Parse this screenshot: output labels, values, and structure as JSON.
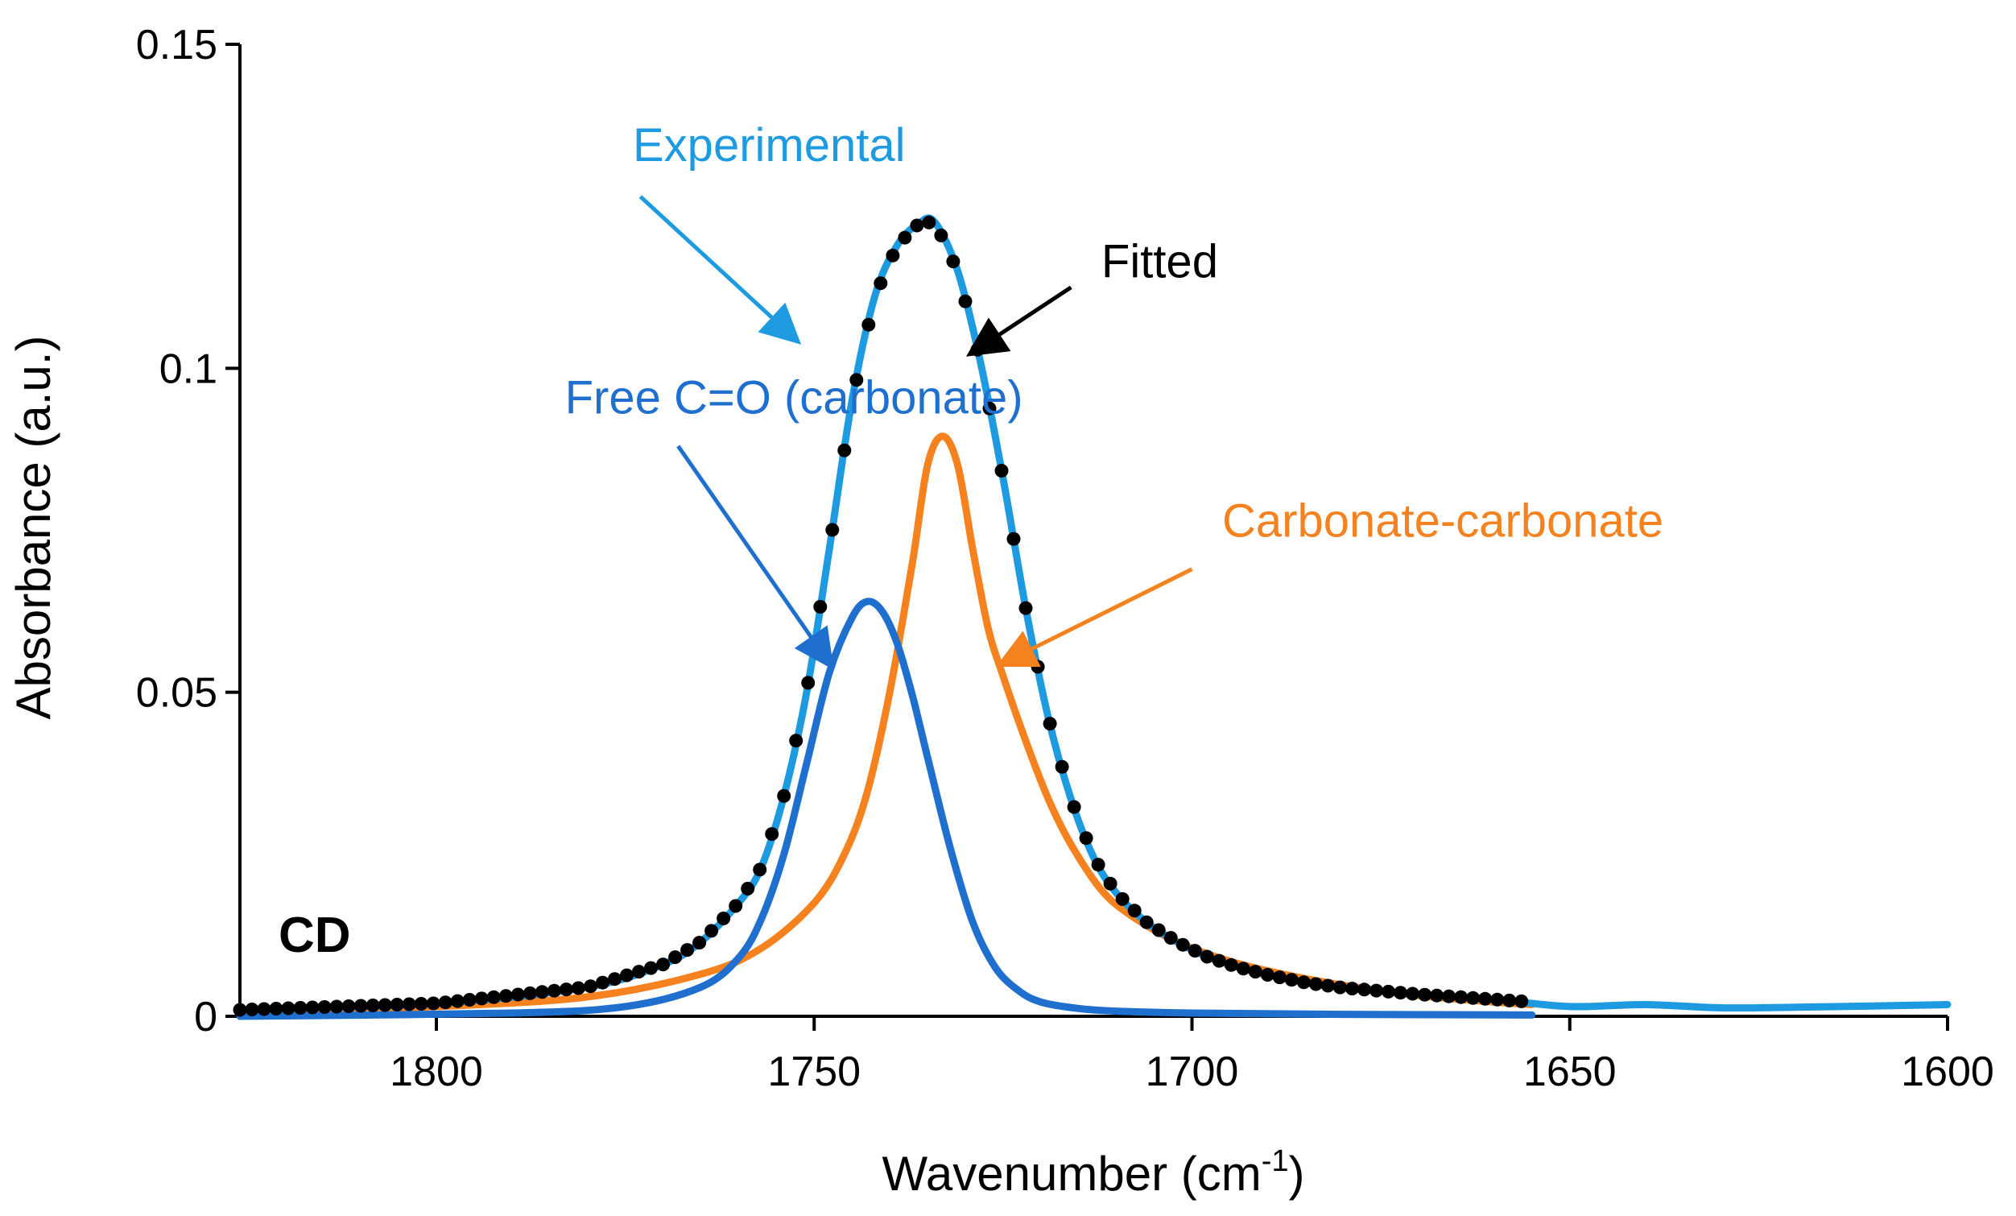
{
  "chart_data": {
    "type": "line",
    "title": "",
    "panel_label": "CD",
    "xlabel": "Wavenumber  (cm",
    "xlabel_sup": "-1",
    "xlabel_close": ")",
    "ylabel": "Absorbance  (a.u.)",
    "xlim": [
      1826,
      1600
    ],
    "ylim": [
      0,
      0.15
    ],
    "x_reversed": true,
    "x_ticks": [
      1800,
      1750,
      1700,
      1650,
      1600
    ],
    "x_tick_labels": [
      "1800",
      "1750",
      "1700",
      "1650",
      "1600"
    ],
    "y_ticks": [
      0,
      0.05,
      0.1,
      0.15
    ],
    "y_tick_labels": [
      "0",
      "0.05",
      "0.1",
      "0.15"
    ],
    "colors": {
      "experimental": "#1e9be0",
      "fitted": "#000000",
      "free": "#1f6fcf",
      "carbcarb": "#f5821f"
    },
    "series": [
      {
        "name": "Experimental",
        "style": "line",
        "color": "#1e9be0",
        "x": [
          1826,
          1800,
          1780,
          1770,
          1765,
          1760,
          1757,
          1754,
          1751,
          1748,
          1745,
          1742,
          1739,
          1736,
          1734,
          1731,
          1728,
          1725,
          1722,
          1719,
          1716,
          1713,
          1710,
          1706,
          1702,
          1698,
          1694,
          1690,
          1685,
          1680,
          1670,
          1660,
          1650,
          1640,
          1630,
          1620,
          1600
        ],
        "values": [
          0.001,
          0.002,
          0.0045,
          0.008,
          0.0115,
          0.0175,
          0.023,
          0.034,
          0.05,
          0.072,
          0.095,
          0.111,
          0.119,
          0.1225,
          0.1225,
          0.115,
          0.101,
          0.083,
          0.063,
          0.046,
          0.0335,
          0.0245,
          0.019,
          0.0145,
          0.0115,
          0.0092,
          0.0076,
          0.0064,
          0.0052,
          0.0044,
          0.0034,
          0.0026,
          0.0015,
          0.0018,
          0.0013,
          0.0014,
          0.0018
        ]
      },
      {
        "name": "Fitted",
        "style": "markers",
        "color": "#000000",
        "x": [
          1826,
          1800,
          1780,
          1770,
          1765,
          1760,
          1757,
          1754,
          1751,
          1748,
          1745,
          1742,
          1739,
          1736,
          1734,
          1731,
          1728,
          1725,
          1722,
          1719,
          1716,
          1713,
          1710,
          1706,
          1702,
          1698,
          1694,
          1690,
          1685,
          1680,
          1670,
          1660,
          1655
        ],
        "values": [
          0.001,
          0.002,
          0.0045,
          0.008,
          0.0115,
          0.0175,
          0.023,
          0.034,
          0.05,
          0.072,
          0.095,
          0.111,
          0.119,
          0.1225,
          0.1225,
          0.115,
          0.101,
          0.083,
          0.063,
          0.046,
          0.0335,
          0.0245,
          0.019,
          0.0145,
          0.0115,
          0.0092,
          0.0076,
          0.0064,
          0.0052,
          0.0044,
          0.0034,
          0.0026,
          0.0022
        ]
      },
      {
        "name": "Free C=O (carbonate)",
        "style": "line",
        "color": "#1f6fcf",
        "x": [
          1826,
          1790,
          1775,
          1765,
          1760,
          1757,
          1754,
          1751,
          1748,
          1745,
          1743,
          1741,
          1739,
          1737,
          1735,
          1732,
          1729,
          1726,
          1723,
          1720,
          1715,
          1710,
          1700,
          1680,
          1655
        ],
        "values": [
          0.0,
          0.0005,
          0.0015,
          0.0045,
          0.009,
          0.015,
          0.025,
          0.039,
          0.053,
          0.0615,
          0.064,
          0.0625,
          0.0575,
          0.0495,
          0.04,
          0.026,
          0.0145,
          0.0075,
          0.004,
          0.0022,
          0.0012,
          0.0008,
          0.0005,
          0.0003,
          0.0002
        ]
      },
      {
        "name": "Carbonate-carbonate",
        "style": "line",
        "color": "#f5821f",
        "x": [
          1826,
          1800,
          1780,
          1765,
          1757,
          1750,
          1746,
          1743,
          1740,
          1737,
          1735,
          1733,
          1731,
          1729,
          1727,
          1725,
          1722,
          1719,
          1716,
          1712,
          1708,
          1702,
          1695,
          1688,
          1680,
          1670,
          1660,
          1655
        ],
        "values": [
          0.0005,
          0.0015,
          0.003,
          0.0065,
          0.0105,
          0.0175,
          0.025,
          0.0345,
          0.05,
          0.07,
          0.085,
          0.0895,
          0.085,
          0.072,
          0.06,
          0.0525,
          0.0425,
          0.0335,
          0.0265,
          0.0195,
          0.0155,
          0.0115,
          0.0085,
          0.0065,
          0.0048,
          0.0032,
          0.0022,
          0.0018
        ]
      }
    ],
    "annotations": [
      {
        "text": "Experimental",
        "color": "#1e9be0",
        "text_at": [
          1774,
          0.132
        ],
        "arrow_from": [
          1773,
          0.1265
        ],
        "arrow_to": [
          1752.5,
          0.1045
        ]
      },
      {
        "text": "Fitted",
        "color": "#000000",
        "text_at": [
          1712,
          0.114
        ],
        "arrow_from": [
          1716,
          0.1125
        ],
        "arrow_to": [
          1729,
          0.1025
        ]
      },
      {
        "text": "Free C=O (carbonate)",
        "color": "#1f6fcf",
        "text_at": [
          1783,
          0.093
        ],
        "arrow_from": [
          1768,
          0.088
        ],
        "arrow_to": [
          1748,
          0.0545
        ]
      },
      {
        "text": "Carbonate-carbonate",
        "color": "#f5821f",
        "text_at": [
          1696,
          0.074
        ],
        "arrow_from": [
          1700,
          0.069
        ],
        "arrow_to": [
          1725,
          0.0545
        ]
      }
    ]
  }
}
